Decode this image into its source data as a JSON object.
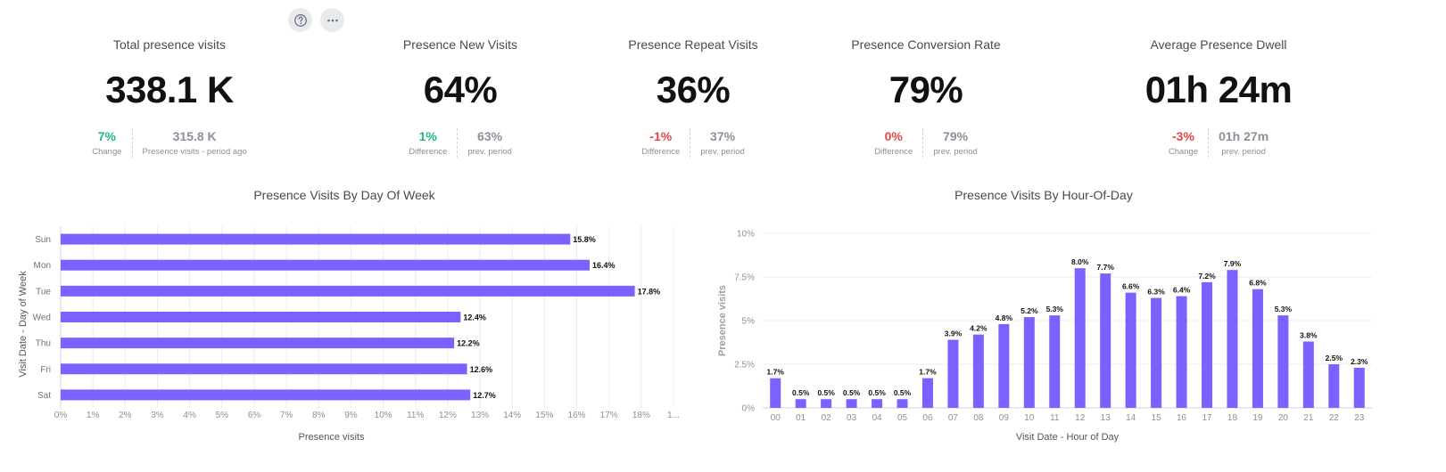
{
  "toolbar": {
    "help_icon": "question-circle-icon",
    "more_icon": "ellipsis-icon"
  },
  "kpis": [
    {
      "title": "Total presence visits",
      "value": "338.1 K",
      "left_value": "7%",
      "left_label": "Change",
      "left_status": "positive",
      "right_value": "315.8 K",
      "right_label": "Presence visits - period ago"
    },
    {
      "title": "Presence New Visits",
      "value": "64%",
      "left_value": "1%",
      "left_label": "Difference",
      "left_status": "positive",
      "right_value": "63%",
      "right_label": "prev. period"
    },
    {
      "title": "Presence Repeat Visits",
      "value": "36%",
      "left_value": "-1%",
      "left_label": "Difference",
      "left_status": "negative",
      "right_value": "37%",
      "right_label": "prev. period"
    },
    {
      "title": "Presence Conversion Rate",
      "value": "79%",
      "left_value": "0%",
      "left_label": "Difference",
      "left_status": "negative",
      "right_value": "79%",
      "right_label": "prev. period"
    },
    {
      "title": "Average Presence Dwell",
      "value": "01h 24m",
      "left_value": "-3%",
      "left_label": "Change",
      "left_status": "negative",
      "right_value": "01h 27m",
      "right_label": "prev. period"
    }
  ],
  "colors": {
    "bar": "#7b61ff",
    "positive": "#1fb58a",
    "negative": "#e04848",
    "grid": "#ececec"
  },
  "chart_data": [
    {
      "type": "bar",
      "orientation": "horizontal",
      "title": "Presence Visits By Day Of Week",
      "xlabel": "Presence visits",
      "ylabel": "Visit Date - Day of Week",
      "categories": [
        "Sun",
        "Mon",
        "Tue",
        "Wed",
        "Thu",
        "Fri",
        "Sat"
      ],
      "values": [
        15.8,
        16.4,
        17.8,
        12.4,
        12.2,
        12.6,
        12.7
      ],
      "data_labels": [
        "15.8%",
        "16.4%",
        "17.8%",
        "12.4%",
        "12.2%",
        "12.6%",
        "12.7%"
      ],
      "x_ticks": [
        "0%",
        "1%",
        "2%",
        "3%",
        "4%",
        "5%",
        "6%",
        "7%",
        "8%",
        "9%",
        "10%",
        "11%",
        "12%",
        "13%",
        "14%",
        "15%",
        "16%",
        "17%",
        "18%",
        "1..."
      ],
      "xlim": [
        0,
        19
      ],
      "grid": true
    },
    {
      "type": "bar",
      "orientation": "vertical",
      "title": "Presence Visits By Hour-Of-Day",
      "xlabel": "Visit Date - Hour of Day",
      "ylabel": "Presence visits",
      "categories": [
        "00",
        "01",
        "02",
        "03",
        "04",
        "05",
        "06",
        "07",
        "08",
        "09",
        "10",
        "11",
        "12",
        "13",
        "14",
        "15",
        "16",
        "17",
        "18",
        "19",
        "20",
        "21",
        "22",
        "23"
      ],
      "values": [
        1.7,
        0.5,
        0.5,
        0.5,
        0.5,
        0.5,
        1.7,
        3.9,
        4.2,
        4.8,
        5.2,
        5.3,
        8.0,
        7.7,
        6.6,
        6.3,
        6.4,
        7.2,
        7.9,
        6.8,
        5.3,
        3.8,
        2.5,
        2.3
      ],
      "data_labels": [
        "1.7%",
        "0.5%",
        "0.5%",
        "0.5%",
        "0.5%",
        "0.5%",
        "1.7%",
        "3.9%",
        "4.2%",
        "4.8%",
        "5.2%",
        "5.3%",
        "8.0%",
        "7.7%",
        "6.6%",
        "6.3%",
        "6.4%",
        "7.2%",
        "7.9%",
        "6.8%",
        "5.3%",
        "3.8%",
        "2.5%",
        "2.3%"
      ],
      "y_ticks": [
        {
          "value": 0,
          "label": "0%"
        },
        {
          "value": 2.5,
          "label": "2.5%"
        },
        {
          "value": 5,
          "label": "5%"
        },
        {
          "value": 7.5,
          "label": "7.5%"
        },
        {
          "value": 10,
          "label": "10%"
        }
      ],
      "ylim": [
        0,
        10
      ],
      "grid": true
    }
  ]
}
